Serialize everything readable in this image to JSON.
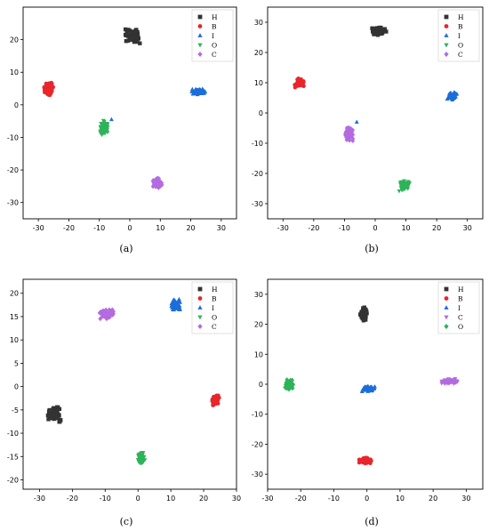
{
  "colors": {
    "H": "#333333",
    "B": "#e8262b",
    "I": "#1c6ed8",
    "O": "#2eb35a",
    "C": "#b36be0"
  },
  "chart_data": [
    {
      "type": "scatter",
      "caption": "(a)",
      "xlim": [
        -35,
        35
      ],
      "ylim": [
        -35,
        30
      ],
      "xticks": [
        -30,
        -20,
        -10,
        0,
        10,
        20,
        30
      ],
      "yticks": [
        -30,
        -20,
        -10,
        0,
        10,
        20
      ],
      "legend_position": "top-right",
      "series": [
        {
          "name": "H",
          "marker": "square",
          "cx": 1,
          "cy": 21,
          "sx": 2.0,
          "sy": 1.8
        },
        {
          "name": "B",
          "marker": "circle",
          "cx": -26.5,
          "cy": 5,
          "sx": 1.3,
          "sy": 1.8
        },
        {
          "name": "I",
          "marker": "triangle-up",
          "cx": 22.5,
          "cy": 4,
          "sx": 1.8,
          "sy": 0.8
        },
        {
          "name": "O",
          "marker": "triangle-down",
          "cx": -8.5,
          "cy": -7,
          "sx": 1.0,
          "sy": 1.8
        },
        {
          "name": "C",
          "marker": "diamond",
          "cx": 9,
          "cy": -24,
          "sx": 1.3,
          "sy": 1.3
        }
      ],
      "outliers": [
        {
          "series": "I",
          "x": -6,
          "y": -4.5
        }
      ]
    },
    {
      "type": "scatter",
      "caption": "(b)",
      "xlim": [
        -35,
        35
      ],
      "ylim": [
        -35,
        35
      ],
      "xticks": [
        -30,
        -20,
        -10,
        0,
        10,
        20,
        30
      ],
      "yticks": [
        -30,
        -20,
        -10,
        0,
        10,
        20,
        30
      ],
      "legend_position": "top-right",
      "series": [
        {
          "name": "H",
          "marker": "square",
          "cx": 1,
          "cy": 27,
          "sx": 2.2,
          "sy": 1.0
        },
        {
          "name": "B",
          "marker": "circle",
          "cx": -24.5,
          "cy": 10,
          "sx": 1.4,
          "sy": 1.3
        },
        {
          "name": "I",
          "marker": "triangle-up",
          "cx": 25,
          "cy": 5.5,
          "sx": 1.3,
          "sy": 1.0
        },
        {
          "name": "O",
          "marker": "triangle-down",
          "cx": 9.5,
          "cy": -24,
          "sx": 1.4,
          "sy": 1.5
        },
        {
          "name": "C",
          "marker": "diamond",
          "cx": -8.5,
          "cy": -7,
          "sx": 1.0,
          "sy": 1.8
        }
      ],
      "outliers": [
        {
          "series": "I",
          "x": -6,
          "y": -3
        }
      ]
    },
    {
      "type": "scatter",
      "caption": "(c)",
      "xlim": [
        -35,
        30
      ],
      "ylim": [
        -22,
        23
      ],
      "xticks": [
        -30,
        -20,
        -10,
        0,
        10,
        20,
        30
      ],
      "yticks": [
        -20,
        -15,
        -10,
        -5,
        0,
        5,
        10,
        15,
        20
      ],
      "legend_position": "top-right",
      "series": [
        {
          "name": "H",
          "marker": "square",
          "cx": -25.5,
          "cy": -6,
          "sx": 1.6,
          "sy": 1.3
        },
        {
          "name": "B",
          "marker": "circle",
          "cx": 23.5,
          "cy": -3,
          "sx": 1.0,
          "sy": 0.9
        },
        {
          "name": "I",
          "marker": "triangle-up",
          "cx": 11.5,
          "cy": 17.5,
          "sx": 1.1,
          "sy": 1.0
        },
        {
          "name": "O",
          "marker": "triangle-down",
          "cx": 1,
          "cy": -15.5,
          "sx": 0.9,
          "sy": 1.1
        },
        {
          "name": "C",
          "marker": "diamond",
          "cx": -9.5,
          "cy": 15.5,
          "sx": 1.8,
          "sy": 0.8
        }
      ],
      "outliers": []
    },
    {
      "type": "scatter",
      "caption": "(d)",
      "xlim": [
        -30,
        35
      ],
      "ylim": [
        -35,
        35
      ],
      "xticks": [
        -30,
        -20,
        -10,
        0,
        10,
        20,
        30
      ],
      "yticks": [
        -30,
        -20,
        -10,
        0,
        10,
        20,
        30
      ],
      "legend_position": "top-right",
      "series": [
        {
          "name": "H",
          "marker": "square",
          "cx": -1,
          "cy": 23.5,
          "sx": 0.8,
          "sy": 2.0
        },
        {
          "name": "B",
          "marker": "circle",
          "cx": -0.5,
          "cy": -25.5,
          "sx": 1.5,
          "sy": 0.8
        },
        {
          "name": "I",
          "marker": "triangle-up",
          "cx": 0.5,
          "cy": -1.5,
          "sx": 1.8,
          "sy": 0.9
        },
        {
          "name": "C",
          "marker": "triangle-down",
          "cx": 25,
          "cy": 1,
          "sx": 2.0,
          "sy": 0.7
        },
        {
          "name": "O",
          "marker": "diamond",
          "cx": -23.5,
          "cy": 0,
          "sx": 1.0,
          "sy": 1.4
        }
      ],
      "outliers": []
    }
  ]
}
